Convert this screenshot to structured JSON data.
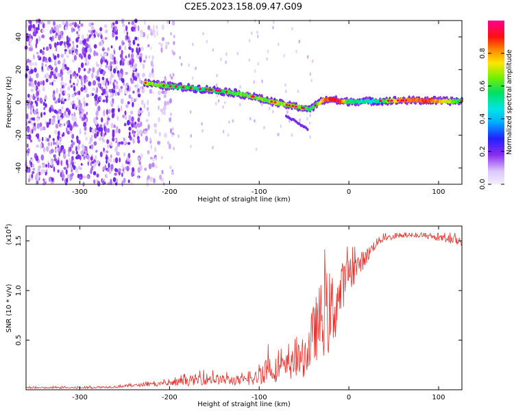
{
  "title": "C2E5.2023.158.09.47.G09",
  "chart_data": [
    {
      "type": "heatmap",
      "xlabel": "Height of straight line (km)",
      "ylabel": "Frequency (Hz)",
      "xlim": [
        -360,
        126
      ],
      "ylim": [
        -50,
        50
      ],
      "xticks": [
        -300,
        -200,
        -100,
        0,
        100
      ],
      "yticks": [
        -40,
        -20,
        0,
        20,
        40
      ],
      "colorbar": {
        "label": "Normalized spectral amplitude",
        "range": [
          0,
          1
        ],
        "ticks": [
          "0.0",
          "0.2",
          "0.4",
          "0.6",
          "0.8"
        ],
        "colormap": "rainbow (white-violet-blue-cyan-green-yellow-orange-red-magenta)"
      },
      "noise_region_x": [
        -360,
        -195
      ],
      "ridge": {
        "x": [
          -228,
          -210,
          -190,
          -170,
          -150,
          -130,
          -110,
          -90,
          -75,
          -60,
          -50,
          -42,
          -36,
          -30,
          -25,
          -20,
          -15,
          -10,
          0,
          30,
          60,
          90,
          110,
          126
        ],
        "freq": [
          12,
          10.5,
          9.5,
          8.5,
          7.5,
          6,
          4,
          1,
          -1,
          -2.5,
          -3.5,
          -4,
          -1,
          1,
          1.5,
          2,
          1.5,
          0.5,
          0.5,
          0.8,
          1.2,
          1.2,
          0.8,
          0.8
        ],
        "amp": [
          0.7,
          0.62,
          0.58,
          0.55,
          0.56,
          0.6,
          0.65,
          0.65,
          0.66,
          0.66,
          0.62,
          0.55,
          0.6,
          0.75,
          0.85,
          0.92,
          0.92,
          0.88,
          0.55,
          0.48,
          0.82,
          0.88,
          0.7,
          0.55
        ]
      }
    },
    {
      "type": "line",
      "xlabel": "Height of straight line (km)",
      "ylabel": "SNR (10 * v/v)",
      "y_multiplier": "(x10",
      "y_multiplier_exp": "4",
      "y_multiplier_close": ")",
      "xlim": [
        -360,
        126
      ],
      "ylim": [
        0,
        1.65
      ],
      "xticks": [
        -300,
        -200,
        -100,
        0,
        100
      ],
      "yticks": [
        0.5,
        1.0,
        1.5
      ],
      "ytick_labels": [
        "0.5",
        "1.0",
        "1.5"
      ],
      "series": [
        {
          "color": "#e8302a",
          "x": [
            -360,
            -300,
            -260,
            -230,
            -200,
            -180,
            -160,
            -140,
            -120,
            -105,
            -100,
            -90,
            -80,
            -70,
            -60,
            -50,
            -45,
            -40,
            -35,
            -30,
            -25,
            -20,
            -15,
            -10,
            -5,
            0,
            10,
            20,
            30,
            40,
            60,
            80,
            100,
            110,
            126
          ],
          "y": [
            0.02,
            0.02,
            0.03,
            0.05,
            0.06,
            0.09,
            0.11,
            0.1,
            0.09,
            0.1,
            0.17,
            0.22,
            0.2,
            0.22,
            0.27,
            0.33,
            0.4,
            0.55,
            0.65,
            0.72,
            0.78,
            0.75,
            0.85,
            0.95,
            1.1,
            1.15,
            1.25,
            1.35,
            1.48,
            1.53,
            1.55,
            1.55,
            1.53,
            1.52,
            1.5
          ],
          "noise": [
            0.008,
            0.01,
            0.012,
            0.015,
            0.03,
            0.05,
            0.06,
            0.05,
            0.05,
            0.06,
            0.12,
            0.15,
            0.12,
            0.14,
            0.15,
            0.2,
            0.25,
            0.3,
            0.35,
            0.4,
            0.42,
            0.45,
            0.35,
            0.3,
            0.22,
            0.18,
            0.12,
            0.08,
            0.05,
            0.03,
            0.02,
            0.02,
            0.03,
            0.04,
            0.05
          ]
        }
      ]
    }
  ]
}
